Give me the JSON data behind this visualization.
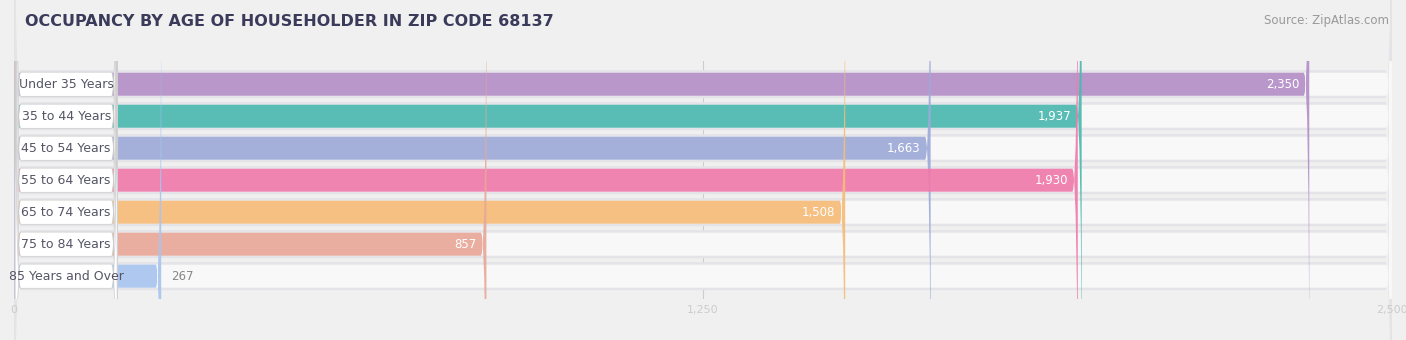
{
  "title": "OCCUPANCY BY AGE OF HOUSEHOLDER IN ZIP CODE 68137",
  "source": "Source: ZipAtlas.com",
  "categories": [
    "Under 35 Years",
    "35 to 44 Years",
    "45 to 54 Years",
    "55 to 64 Years",
    "65 to 74 Years",
    "75 to 84 Years",
    "85 Years and Over"
  ],
  "values": [
    2350,
    1937,
    1663,
    1930,
    1508,
    857,
    267
  ],
  "bar_colors": [
    "#b48fc8",
    "#4db8b0",
    "#9daad8",
    "#f07aaa",
    "#f5bc78",
    "#e8a898",
    "#a8c4f0"
  ],
  "xlim": [
    0,
    2500
  ],
  "xticks": [
    0,
    1250,
    2500
  ],
  "background_color": "#f0f0f0",
  "bar_row_bg": "#e8e8e8",
  "bar_bg_color": "#ffffff",
  "title_fontsize": 11.5,
  "source_fontsize": 8.5,
  "label_fontsize": 9,
  "value_fontsize": 8.5,
  "label_text_color": "#555566",
  "value_text_color_inside": "#ffffff",
  "value_text_color_outside": "#888888"
}
